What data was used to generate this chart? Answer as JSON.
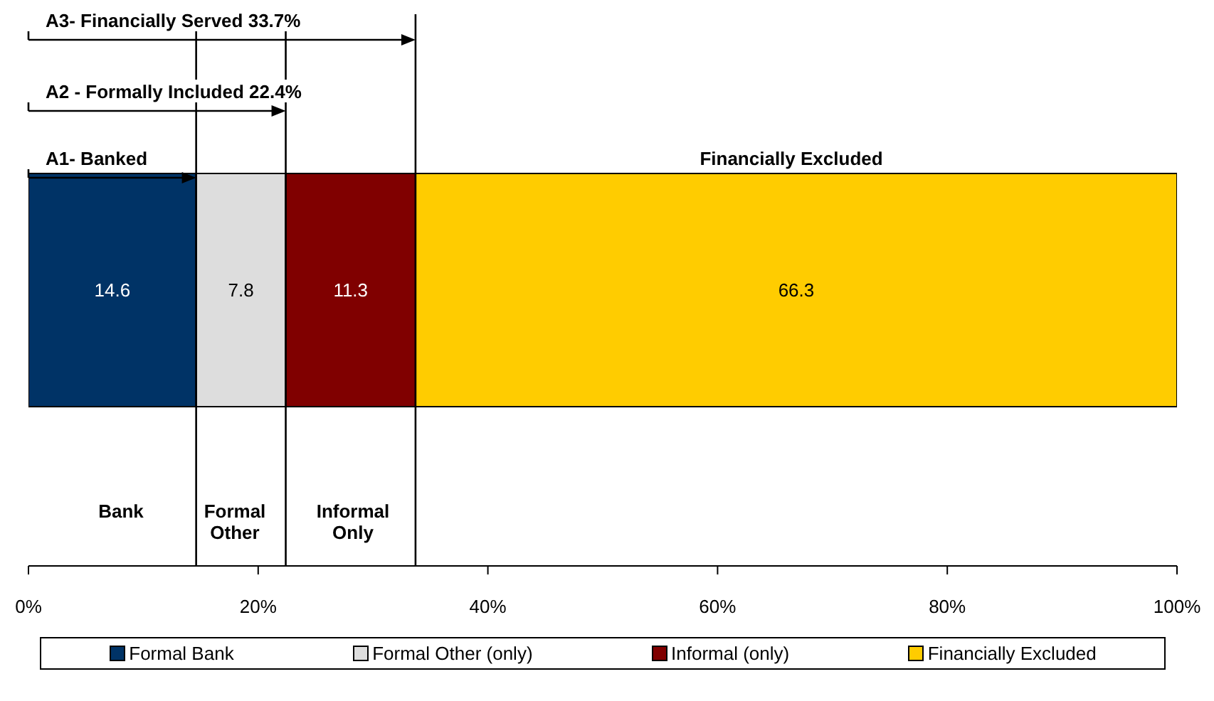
{
  "chart_data": {
    "type": "bar",
    "orientation": "horizontal",
    "stacked": true,
    "categories": [
      null
    ],
    "series": [
      {
        "name": "Formal Bank",
        "color": "#003366",
        "values": [
          14.6
        ]
      },
      {
        "name": "Formal Other (only)",
        "color": "#dddddd",
        "values": [
          7.8
        ]
      },
      {
        "name": "Informal (only)",
        "color": "#800000",
        "values": [
          11.3
        ]
      },
      {
        "name": "Financially Excluded",
        "color": "#ffcc00",
        "values": [
          66.3
        ]
      }
    ],
    "data_labels": true,
    "xlim": [
      0,
      100
    ],
    "xticks": [
      {
        "value": 0,
        "label": "0%"
      },
      {
        "value": 20,
        "label": "20%"
      },
      {
        "value": 40,
        "label": "40%"
      },
      {
        "value": 60,
        "label": "60%"
      },
      {
        "value": 80,
        "label": "80%"
      },
      {
        "value": 100,
        "label": "100%"
      }
    ],
    "ref_lines": [
      {
        "axis": "x",
        "value": 14.6,
        "label": "A1- Banked"
      },
      {
        "axis": "x",
        "value": 22.4,
        "label": "A2 - Formally Included 22.4%"
      },
      {
        "axis": "x",
        "value": 33.7,
        "label": "A3- Financially Served 33.7%"
      }
    ],
    "annotations": [
      "Financially Excluded",
      "Bank",
      "Formal Other",
      "Informal Only"
    ],
    "legend": "bottom",
    "grid": false
  }
}
